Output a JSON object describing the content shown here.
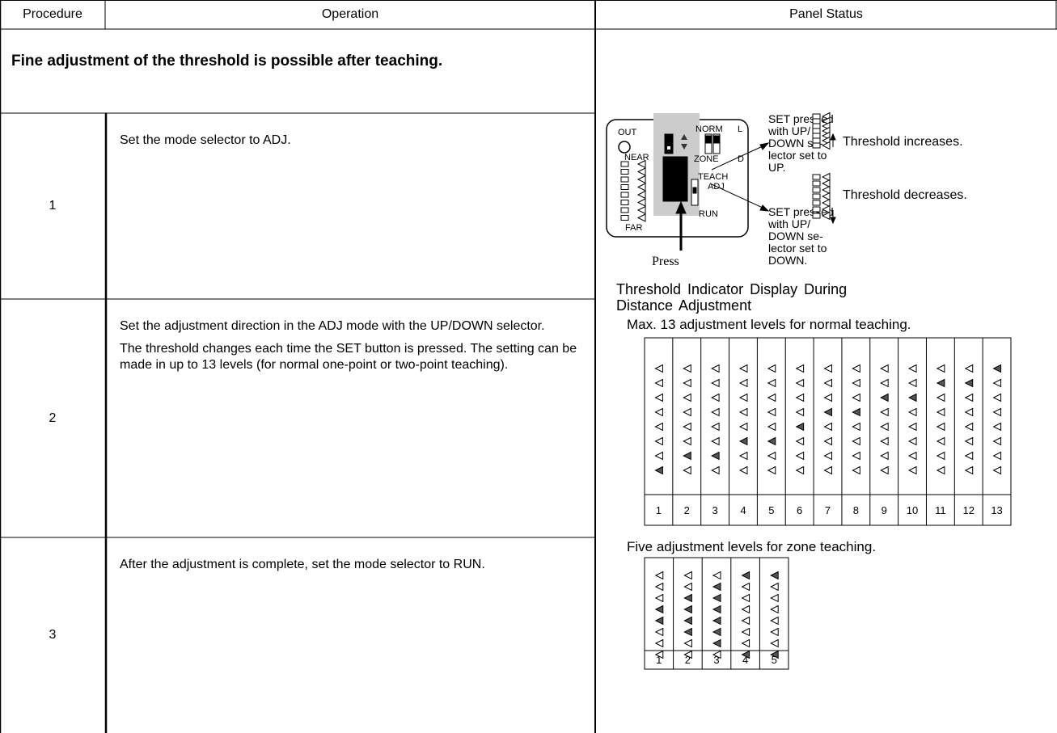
{
  "header": {
    "columns": [
      "Procedure",
      "Operation",
      "Panel Status"
    ]
  },
  "table": {
    "title": "Fine adjustment of the threshold is possible after teaching.",
    "rows": [
      {
        "procedure": "1",
        "operation": [
          "Set the mode selector to ADJ."
        ]
      },
      {
        "procedure": "2",
        "operation": [
          "Set the adjustment direction in the ADJ mode with the UP/DOWN selector.",
          "The threshold changes each time the SET button is pressed. The setting can be made in up to 13 levels (for normal one-point or two-point teaching)."
        ]
      },
      {
        "procedure": "3",
        "operation": [
          "After the adjustment is complete, set the mode selector to RUN."
        ]
      }
    ]
  },
  "panel": {
    "out": "OUT",
    "norm": "NORM",
    "l": "L",
    "zone": "ZONE",
    "d": "D",
    "near": "NEAR",
    "far": "FAR",
    "teach": "TEACH",
    "adj": "ADJ",
    "run": "RUN",
    "press": "Press",
    "up_note": [
      "SET pressed",
      "with UP/",
      "DOWN se-",
      "lector set to",
      "UP."
    ],
    "up_result": "Threshold increases.",
    "down_note": [
      "SET pressed",
      "with UP/",
      "DOWN se-",
      "lector set to",
      "DOWN."
    ],
    "down_result": "Threshold decreases.",
    "display_title": [
      "Threshold Indicator Display During",
      "Distance Adjustment"
    ],
    "normal_caption": "Max. 13 adjustment levels for normal teaching.",
    "normal_levels": [
      1,
      2,
      3,
      4,
      5,
      6,
      7,
      8,
      9,
      10,
      11,
      12,
      13
    ],
    "zone_caption": "Five adjustment levels for zone teaching.",
    "zone_levels": [
      1,
      2,
      3,
      4,
      5
    ]
  }
}
